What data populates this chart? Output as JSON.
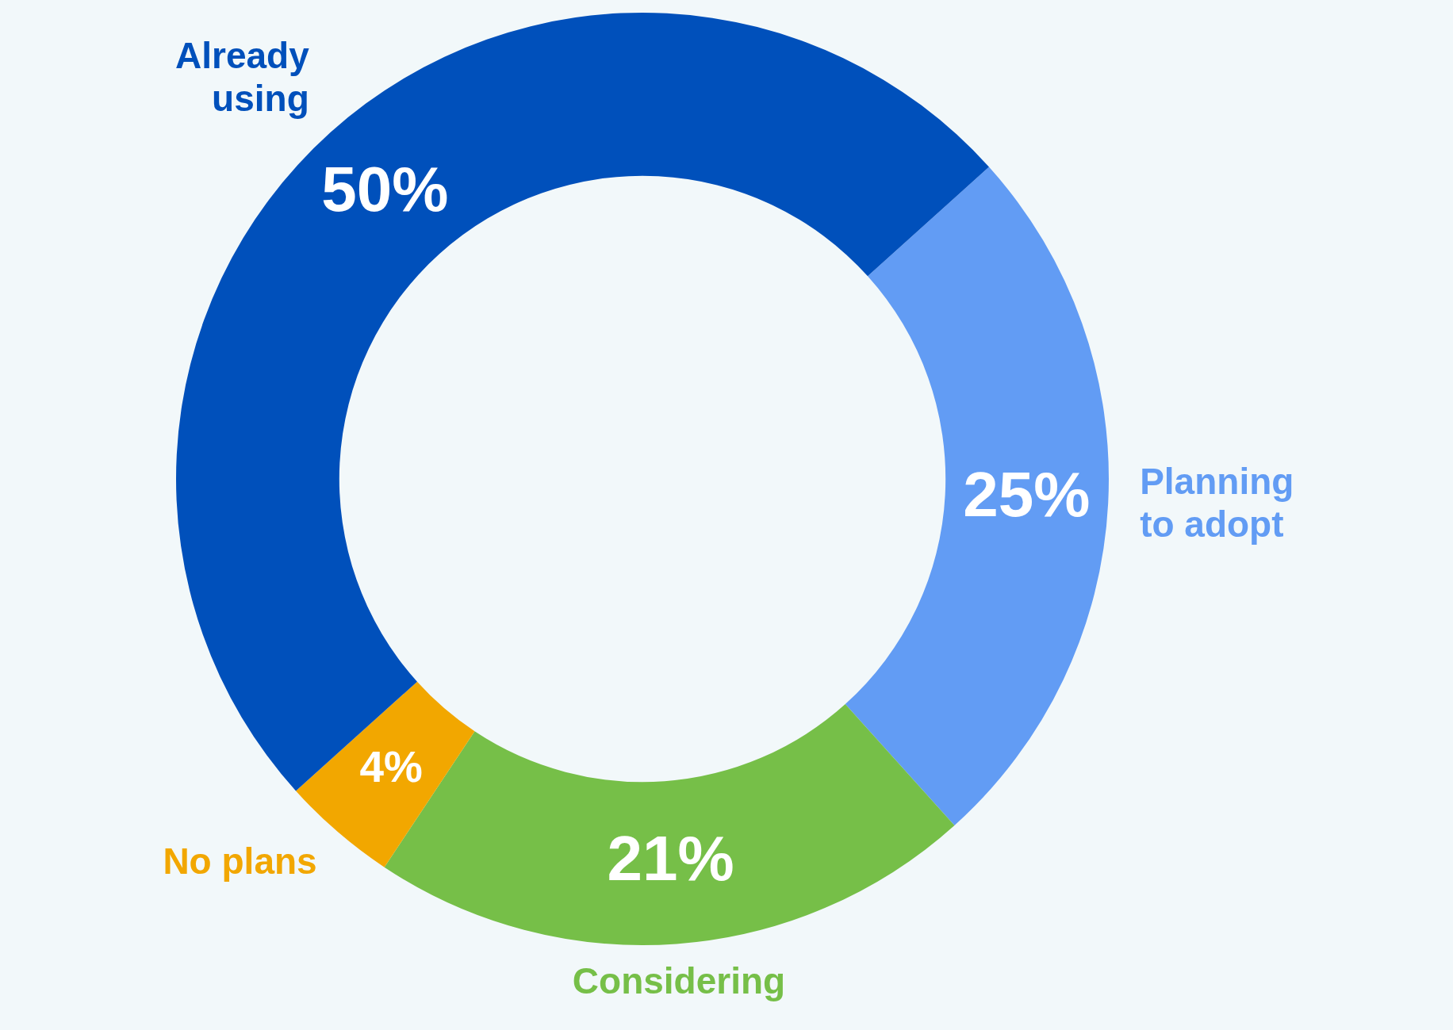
{
  "chart_data": {
    "type": "donut",
    "categories": [
      "Planning to adopt",
      "Considering",
      "No plans",
      "Already using"
    ],
    "values": [
      25,
      21,
      4,
      50
    ],
    "colors": [
      "#629cf4",
      "#76bf48",
      "#f2a700",
      "#0050bb"
    ],
    "value_labels": [
      "25%",
      "21%",
      "4%",
      "50%"
    ],
    "legend": false
  }
}
